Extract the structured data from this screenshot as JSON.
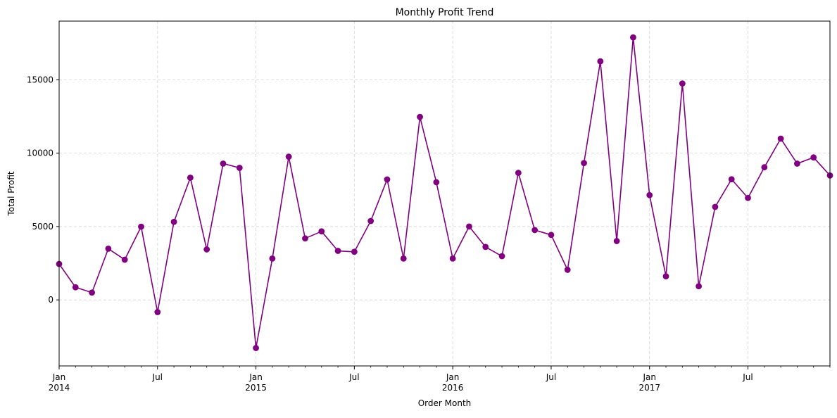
{
  "chart_data": {
    "type": "line",
    "title": "Monthly Profit Trend",
    "xlabel": "Order Month",
    "ylabel": "Total Profit",
    "x": [
      "2014-01",
      "2014-02",
      "2014-03",
      "2014-04",
      "2014-05",
      "2014-06",
      "2014-07",
      "2014-08",
      "2014-09",
      "2014-10",
      "2014-11",
      "2014-12",
      "2015-01",
      "2015-02",
      "2015-03",
      "2015-04",
      "2015-05",
      "2015-06",
      "2015-07",
      "2015-08",
      "2015-09",
      "2015-10",
      "2015-11",
      "2015-12",
      "2016-01",
      "2016-02",
      "2016-03",
      "2016-04",
      "2016-05",
      "2016-06",
      "2016-07",
      "2016-08",
      "2016-09",
      "2016-10",
      "2016-11",
      "2016-12",
      "2017-01",
      "2017-02",
      "2017-03",
      "2017-04",
      "2017-05",
      "2017-06",
      "2017-07",
      "2017-08",
      "2017-09",
      "2017-10",
      "2017-11",
      "2017-12"
    ],
    "series": [
      {
        "values": [
          2450,
          860,
          500,
          3490,
          2740,
          4990,
          -830,
          5320,
          8330,
          3440,
          9290,
          9000,
          -3280,
          2820,
          9760,
          4190,
          4670,
          3340,
          3280,
          5380,
          8210,
          2820,
          12470,
          8020,
          2820,
          5000,
          3610,
          2980,
          8660,
          4760,
          4430,
          2050,
          9330,
          16260,
          4010,
          17890,
          7140,
          1610,
          14750,
          930,
          6340,
          8220,
          6950,
          9040,
          10990,
          9290,
          9710,
          8480
        ]
      }
    ],
    "ylim": [
      -4500,
      19000
    ],
    "yticks": [
      0,
      5000,
      10000,
      15000
    ],
    "ytick_labels": [
      "0",
      "5000",
      "10000",
      "15000"
    ],
    "xticks": [
      {
        "month": "2014-01",
        "label": "Jan",
        "year": "2014"
      },
      {
        "month": "2014-07",
        "label": "Jul",
        "year": ""
      },
      {
        "month": "2015-01",
        "label": "Jan",
        "year": "2015"
      },
      {
        "month": "2015-07",
        "label": "Jul",
        "year": ""
      },
      {
        "month": "2016-01",
        "label": "Jan",
        "year": "2016"
      },
      {
        "month": "2016-07",
        "label": "Jul",
        "year": ""
      },
      {
        "month": "2017-01",
        "label": "Jan",
        "year": "2017"
      },
      {
        "month": "2017-07",
        "label": "Jul",
        "year": ""
      }
    ],
    "grid": true,
    "line_color": "#800080",
    "marker_color": "#800080"
  }
}
